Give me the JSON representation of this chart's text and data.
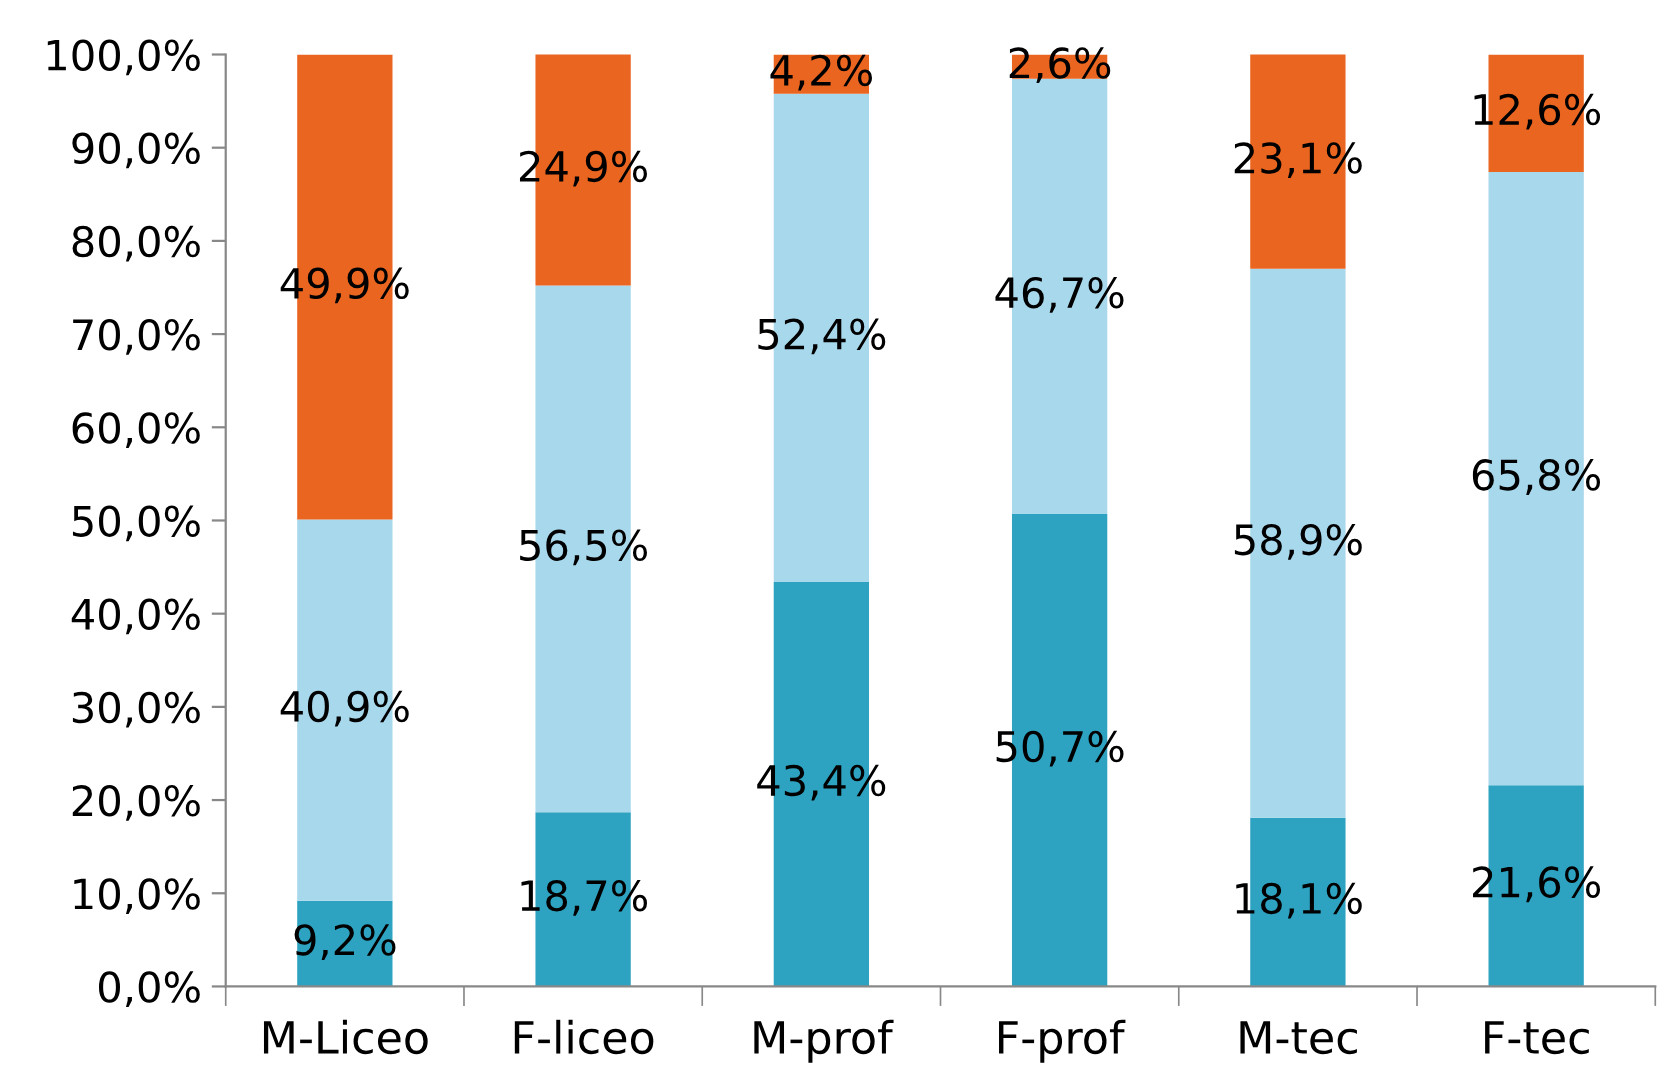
{
  "chart_data": {
    "type": "bar",
    "stacked": true,
    "categories": [
      "M-Liceo",
      "F-liceo",
      "M-prof",
      "F-prof",
      "M-tec",
      "F-tec"
    ],
    "series": [
      {
        "color": "#2ea3c1",
        "values": [
          9.2,
          18.7,
          43.4,
          50.7,
          18.1,
          21.6
        ],
        "value_labels": [
          "9,2%",
          "18,7%",
          "43,4%",
          "50,7%",
          "18,1%",
          "21,6%"
        ]
      },
      {
        "color": "#a8d8ec",
        "values": [
          40.9,
          56.5,
          52.4,
          46.7,
          58.9,
          65.8
        ],
        "value_labels": [
          "40,9%",
          "56,5%",
          "52,4%",
          "46,7%",
          "58,9%",
          "65,8%"
        ]
      },
      {
        "color": "#ea6520",
        "values": [
          49.9,
          24.9,
          4.2,
          2.6,
          23.1,
          12.6
        ],
        "value_labels": [
          "49,9%",
          "24,9%",
          "4,2%",
          "2,6%",
          "23,1%",
          "12,6%"
        ]
      }
    ],
    "ylim": [
      0,
      100
    ],
    "yticks": [
      {
        "value": 0,
        "label": "0,0%"
      },
      {
        "value": 10,
        "label": "10,0%"
      },
      {
        "value": 20,
        "label": "20,0%"
      },
      {
        "value": 30,
        "label": "30,0%"
      },
      {
        "value": 40,
        "label": "40,0%"
      },
      {
        "value": 50,
        "label": "50,0%"
      },
      {
        "value": 60,
        "label": "60,0%"
      },
      {
        "value": 70,
        "label": "70,0%"
      },
      {
        "value": 80,
        "label": "80,0%"
      },
      {
        "value": 90,
        "label": "90,0%"
      },
      {
        "value": 100,
        "label": "100,0%"
      }
    ],
    "grid": false,
    "legend": false
  }
}
